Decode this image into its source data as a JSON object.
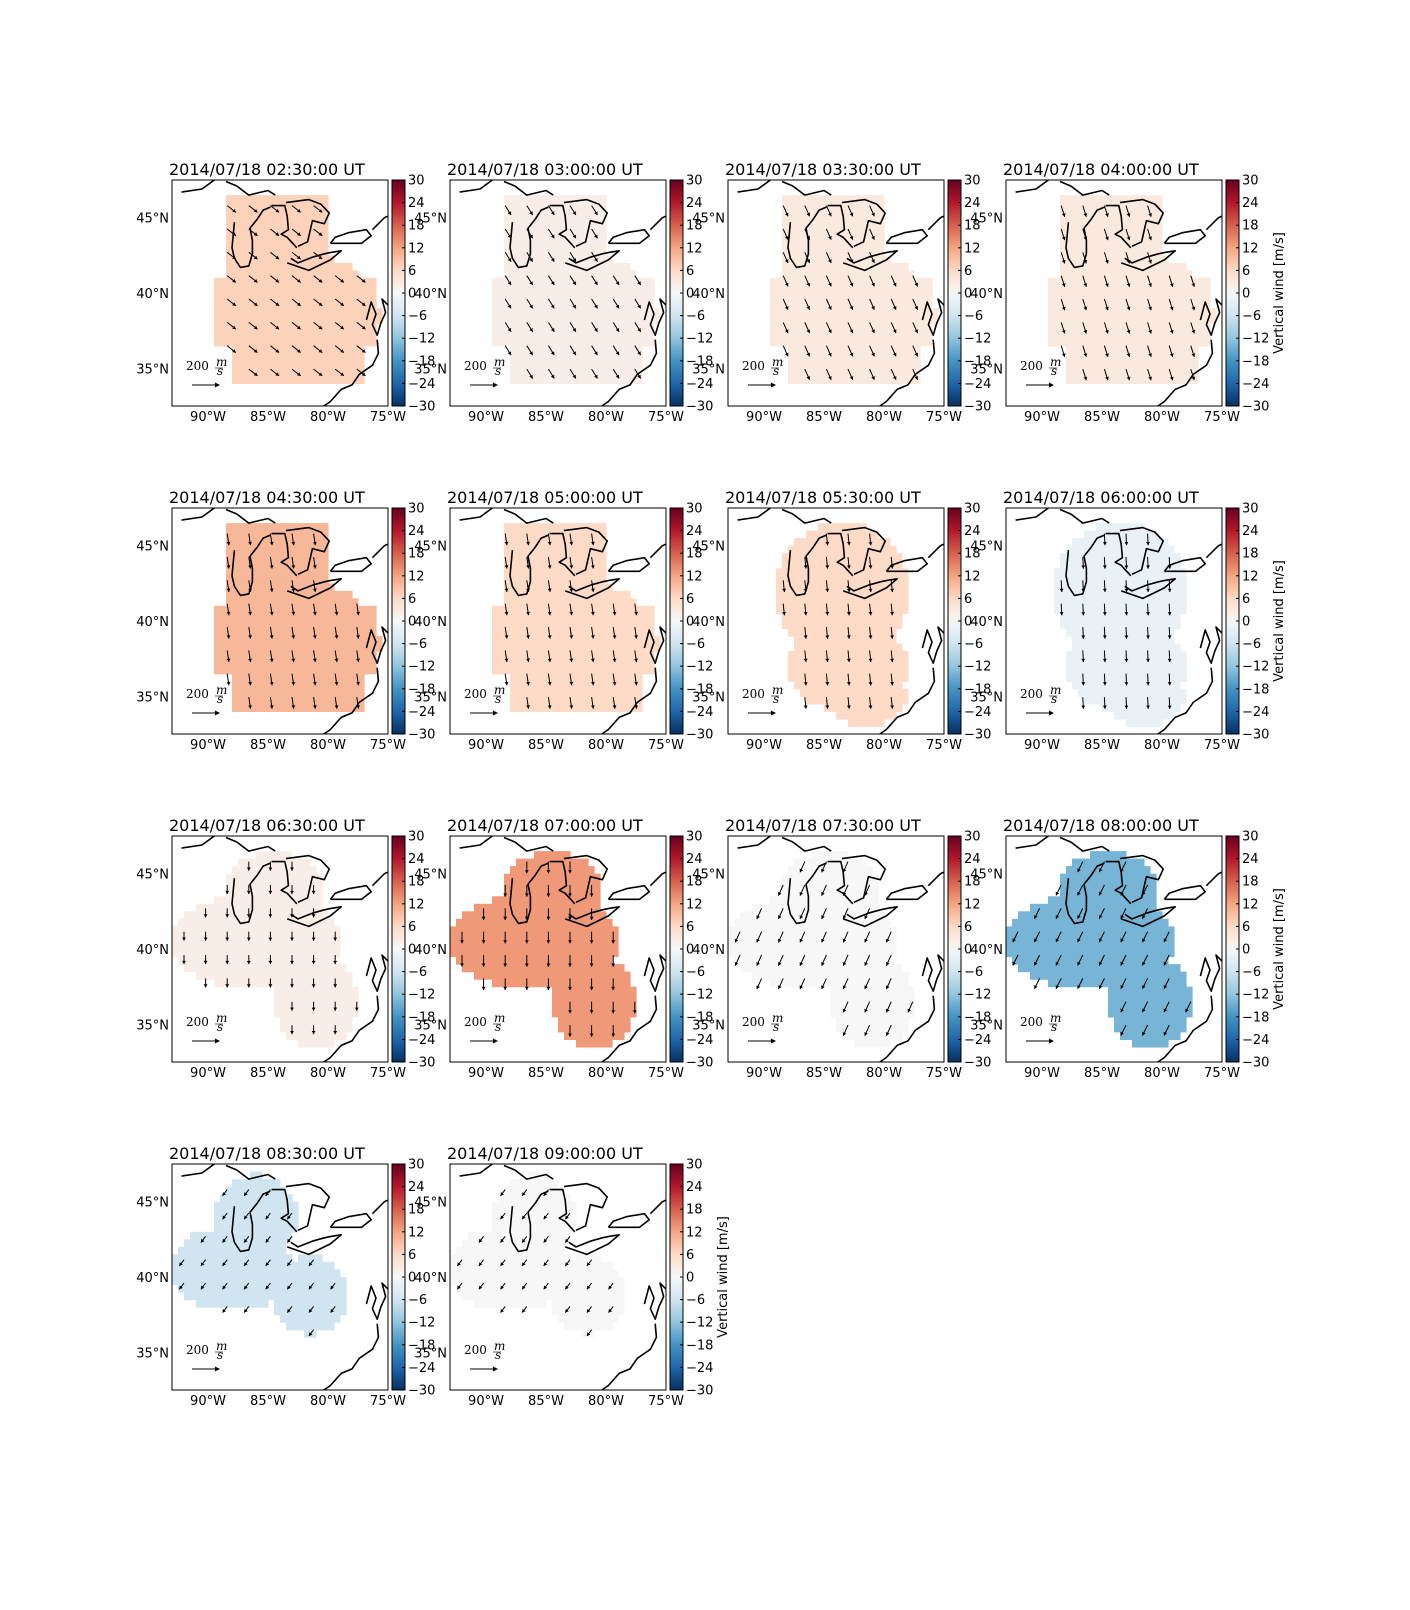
{
  "figure": {
    "colorbar_label": "Vertical wind [m/s]",
    "colorbar_ticks": [
      "30",
      "24",
      "18",
      "12",
      "6",
      "0",
      "−6",
      "−12",
      "−18",
      "−24",
      "−30"
    ],
    "colorbar_range": [
      -30,
      30
    ],
    "colormap": "RdBu_r",
    "lon_labels": [
      "90°W",
      "85°W",
      "80°W",
      "75°W"
    ],
    "lat_labels": [
      "45°N",
      "40°N",
      "35°N"
    ],
    "scale_label": "200",
    "scale_unit_num": "m",
    "scale_unit_den": "s"
  },
  "chart_data": {
    "type": "heatmap",
    "quantity": "Vertical wind [m/s]",
    "vector_field": "horizontal wind arrows",
    "extent": {
      "lon": [
        -93,
        -75
      ],
      "lat": [
        32.5,
        47.5
      ]
    },
    "panels": [
      {
        "title": "2014/07/18 02:30:00 UT",
        "value": 7,
        "dir": [
          0.7,
          -0.55
        ],
        "mag": 0.85,
        "region": "full",
        "cb_label": false
      },
      {
        "title": "2014/07/18 03:00:00 UT",
        "value": 2,
        "dir": [
          0.5,
          -0.8
        ],
        "mag": 0.85,
        "region": "full",
        "cb_label": false
      },
      {
        "title": "2014/07/18 03:30:00 UT",
        "value": 3,
        "dir": [
          0.4,
          -0.9
        ],
        "mag": 0.9,
        "region": "full",
        "cb_label": false
      },
      {
        "title": "2014/07/18 04:00:00 UT",
        "value": 3,
        "dir": [
          0.3,
          -0.95
        ],
        "mag": 0.9,
        "region": "full",
        "cb_label": true
      },
      {
        "title": "2014/07/18 04:30:00 UT",
        "value": 10,
        "dir": [
          0.15,
          -1.0
        ],
        "mag": 0.9,
        "region": "full",
        "cb_label": false
      },
      {
        "title": "2014/07/18 05:00:00 UT",
        "value": 6,
        "dir": [
          0.15,
          -1.0
        ],
        "mag": 0.9,
        "region": "full",
        "cb_label": false
      },
      {
        "title": "2014/07/18 05:30:00 UT",
        "value": 6,
        "dir": [
          0.1,
          -1.0
        ],
        "mag": 0.9,
        "region": "east",
        "cb_label": false
      },
      {
        "title": "2014/07/18 06:00:00 UT",
        "value": -2,
        "dir": [
          0.05,
          -1.0
        ],
        "mag": 0.9,
        "region": "east",
        "cb_label": true
      },
      {
        "title": "2014/07/18 06:30:00 UT",
        "value": 2,
        "dir": [
          0.0,
          -1.0
        ],
        "mag": 0.7,
        "region": "west",
        "cb_label": false
      },
      {
        "title": "2014/07/18 07:00:00 UT",
        "value": 13,
        "dir": [
          0.0,
          -1.0
        ],
        "mag": 0.9,
        "region": "west",
        "cb_label": false
      },
      {
        "title": "2014/07/18 07:30:00 UT",
        "value": 0,
        "dir": [
          -0.4,
          -0.9
        ],
        "mag": 0.9,
        "region": "west",
        "cb_label": false
      },
      {
        "title": "2014/07/18 08:00:00 UT",
        "value": -14,
        "dir": [
          -0.45,
          -0.9
        ],
        "mag": 0.9,
        "region": "west",
        "cb_label": true
      },
      {
        "title": "2014/07/18 08:30:00 UT",
        "value": -6,
        "dir": [
          -0.6,
          -0.8
        ],
        "mag": 0.6,
        "region": "two",
        "cb_label": false
      },
      {
        "title": "2014/07/18 09:00:00 UT",
        "value": 0,
        "dir": [
          -0.6,
          -0.8
        ],
        "mag": 0.6,
        "region": "two",
        "cb_label": true
      }
    ]
  }
}
